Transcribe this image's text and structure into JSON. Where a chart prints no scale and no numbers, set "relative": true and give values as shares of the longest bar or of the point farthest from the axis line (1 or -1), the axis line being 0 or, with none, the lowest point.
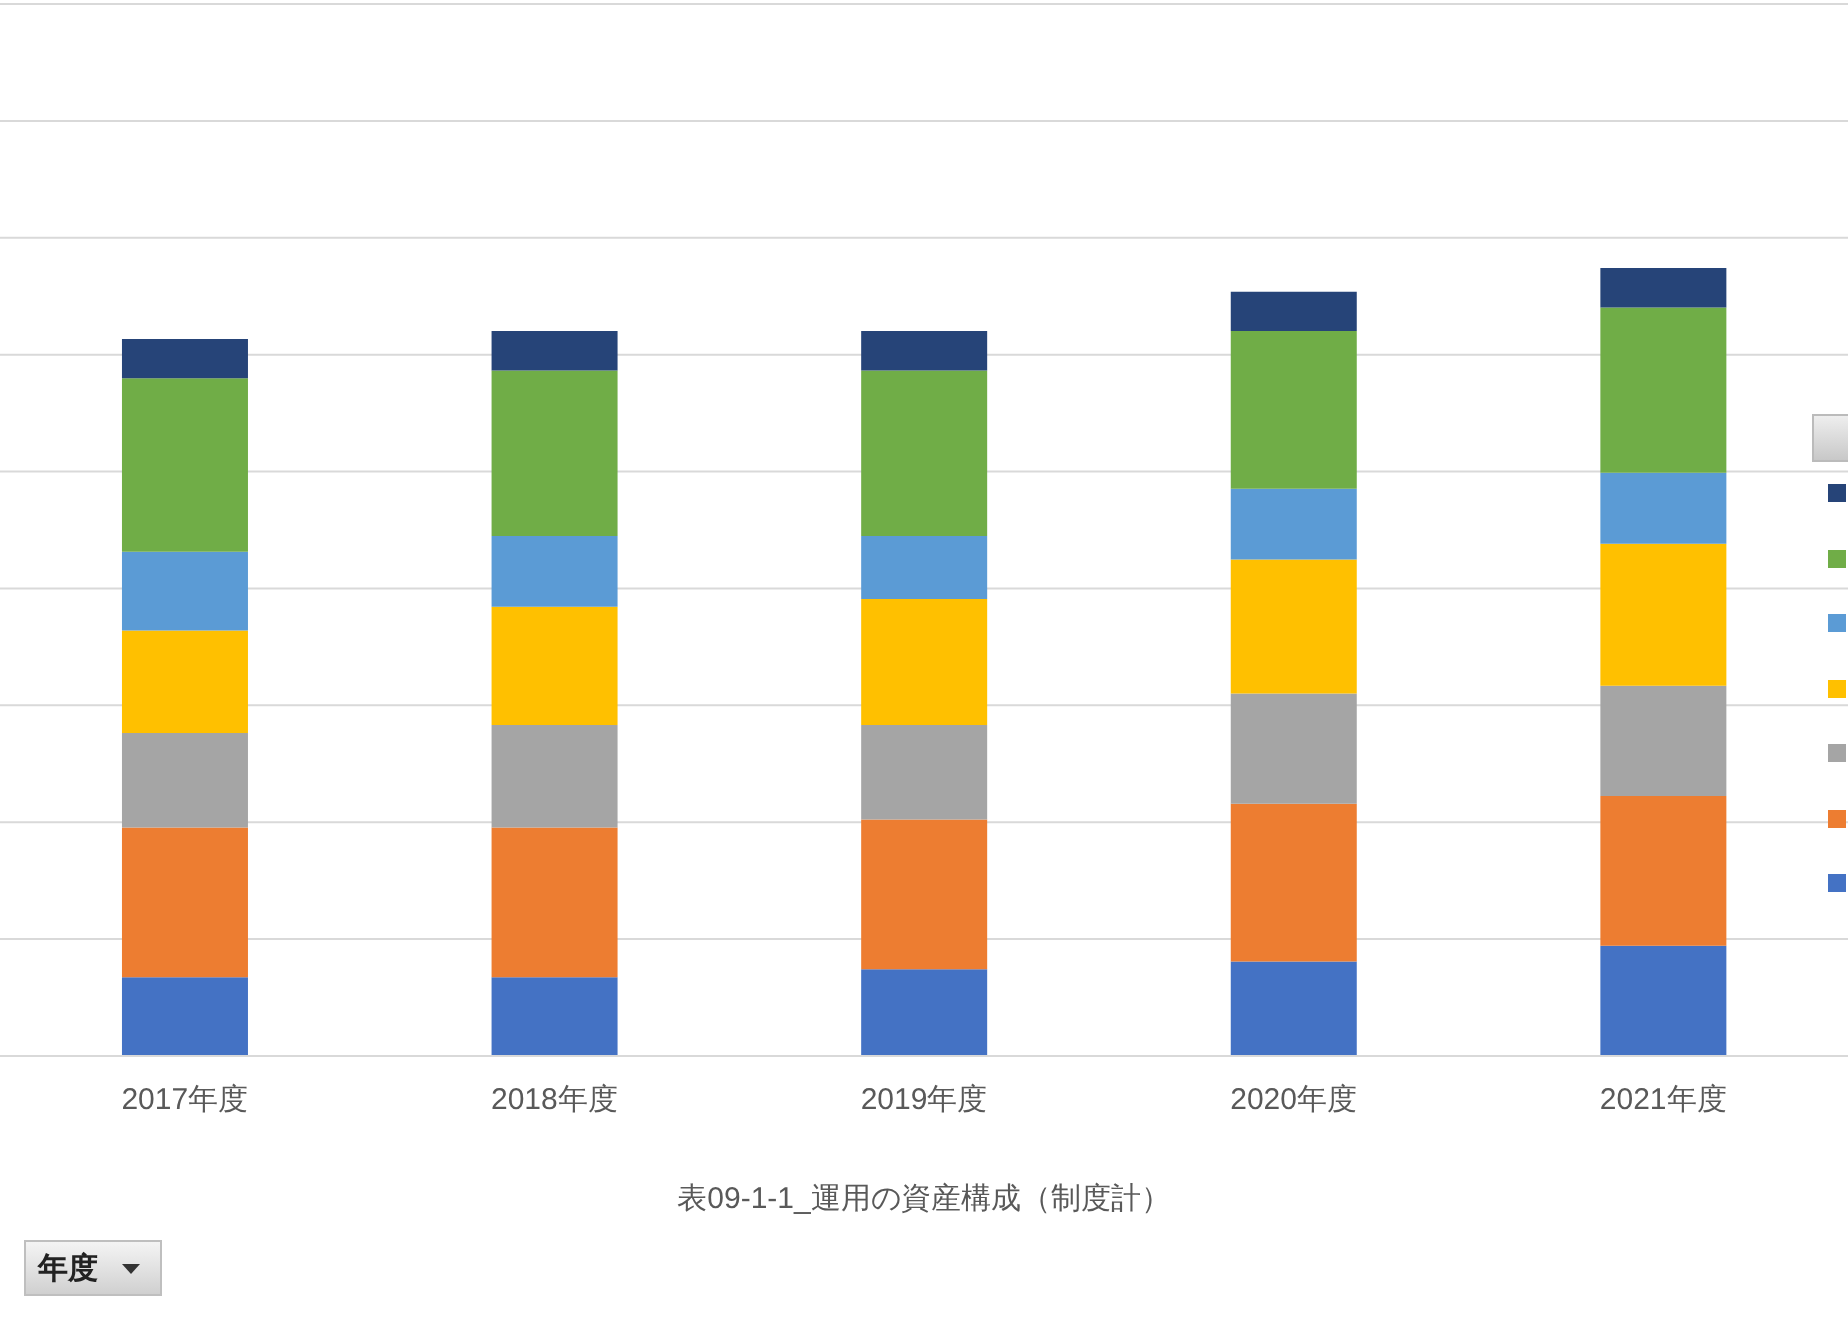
{
  "chart_data": {
    "type": "bar",
    "stacked": true,
    "relative": true,
    "xlabel": "表09-1-1_運用の資産構成（制度計）",
    "categories": [
      "2017年度",
      "2018年度",
      "2019年度",
      "2020年度",
      "2021年度"
    ],
    "series": [
      {
        "color": "#4472c4",
        "values": [
          0.1,
          0.1,
          0.11,
          0.12,
          0.14
        ]
      },
      {
        "color": "#ed7d31",
        "values": [
          0.19,
          0.19,
          0.19,
          0.2,
          0.19
        ]
      },
      {
        "color": "#a5a5a5",
        "values": [
          0.12,
          0.13,
          0.12,
          0.14,
          0.14
        ]
      },
      {
        "color": "#ffc000",
        "values": [
          0.13,
          0.15,
          0.16,
          0.17,
          0.18
        ]
      },
      {
        "color": "#5b9bd5",
        "values": [
          0.1,
          0.09,
          0.08,
          0.09,
          0.09
        ]
      },
      {
        "color": "#70ad47",
        "values": [
          0.22,
          0.21,
          0.21,
          0.2,
          0.21
        ]
      },
      {
        "color": "#264478",
        "values": [
          0.05,
          0.05,
          0.05,
          0.05,
          0.05
        ]
      }
    ],
    "grid": "y",
    "annotations": [
      "年度"
    ]
  }
}
